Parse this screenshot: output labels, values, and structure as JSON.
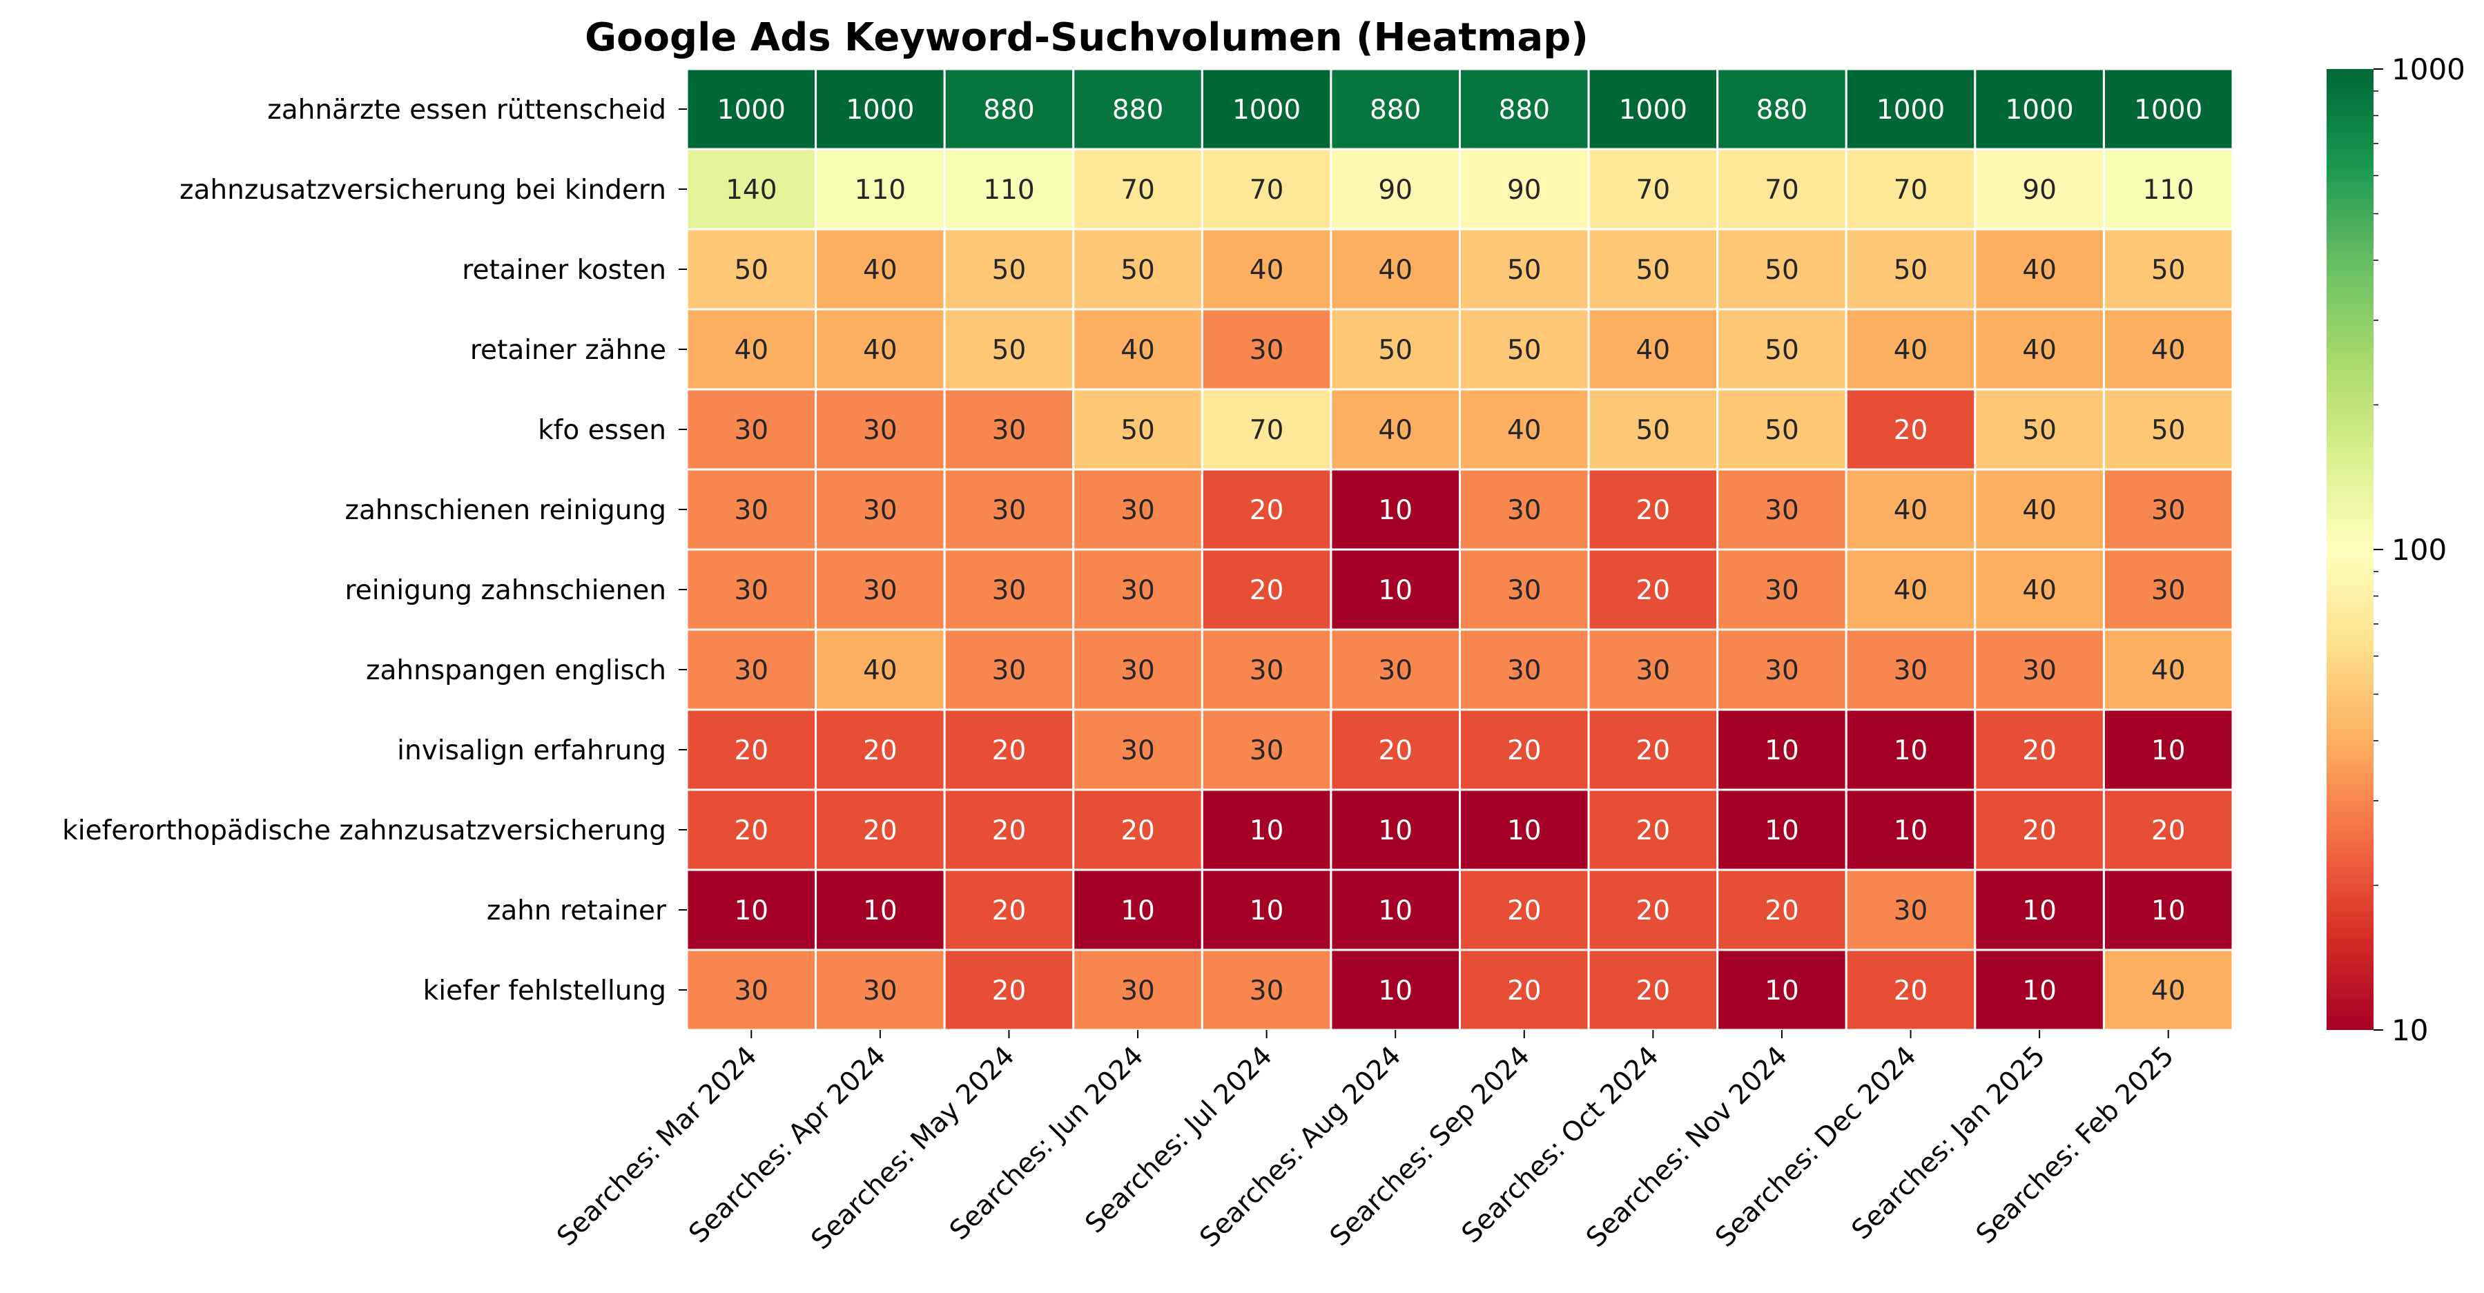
{
  "chart_data": {
    "type": "heatmap",
    "title": "Google Ads Keyword-Suchvolumen (Heatmap)",
    "xlabel": "",
    "ylabel": "",
    "color_scale": "log",
    "colormap": "RdYlGn",
    "vmin": 10,
    "vmax": 1000,
    "colorbar_ticks": [
      10,
      100,
      1000
    ],
    "columns": [
      "Searches: Mar 2024",
      "Searches: Apr 2024",
      "Searches: May 2024",
      "Searches: Jun 2024",
      "Searches: Jul 2024",
      "Searches: Aug 2024",
      "Searches: Sep 2024",
      "Searches: Oct 2024",
      "Searches: Nov 2024",
      "Searches: Dec 2024",
      "Searches: Jan 2025",
      "Searches: Feb 2025"
    ],
    "rows": [
      "zahnärzte essen rüttenscheid",
      "zahnzusatzversicherung bei kindern",
      "retainer kosten",
      "retainer zähne",
      "kfo essen",
      "zahnschienen reinigung",
      "reinigung zahnschienen",
      "zahnspangen englisch",
      "invisalign erfahrung",
      "kieferorthopädische zahnzusatzversicherung",
      "zahn retainer",
      "kiefer fehlstellung"
    ],
    "values": [
      [
        1000,
        1000,
        880,
        880,
        1000,
        880,
        880,
        1000,
        880,
        1000,
        1000,
        1000
      ],
      [
        140,
        110,
        110,
        70,
        70,
        90,
        90,
        70,
        70,
        70,
        90,
        110
      ],
      [
        50,
        40,
        50,
        50,
        40,
        40,
        50,
        50,
        50,
        50,
        40,
        50
      ],
      [
        40,
        40,
        50,
        40,
        30,
        50,
        50,
        40,
        50,
        40,
        40,
        40
      ],
      [
        30,
        30,
        30,
        50,
        70,
        40,
        40,
        50,
        50,
        20,
        50,
        50
      ],
      [
        30,
        30,
        30,
        30,
        20,
        10,
        30,
        20,
        30,
        40,
        40,
        30
      ],
      [
        30,
        30,
        30,
        30,
        20,
        10,
        30,
        20,
        30,
        40,
        40,
        30
      ],
      [
        30,
        40,
        30,
        30,
        30,
        30,
        30,
        30,
        30,
        30,
        30,
        40
      ],
      [
        20,
        20,
        20,
        30,
        30,
        20,
        20,
        20,
        10,
        10,
        20,
        10
      ],
      [
        20,
        20,
        20,
        20,
        10,
        10,
        10,
        20,
        10,
        10,
        20,
        20
      ],
      [
        10,
        10,
        20,
        10,
        10,
        10,
        20,
        20,
        20,
        30,
        10,
        10
      ],
      [
        30,
        30,
        20,
        30,
        30,
        10,
        20,
        20,
        10,
        20,
        10,
        40
      ]
    ]
  }
}
